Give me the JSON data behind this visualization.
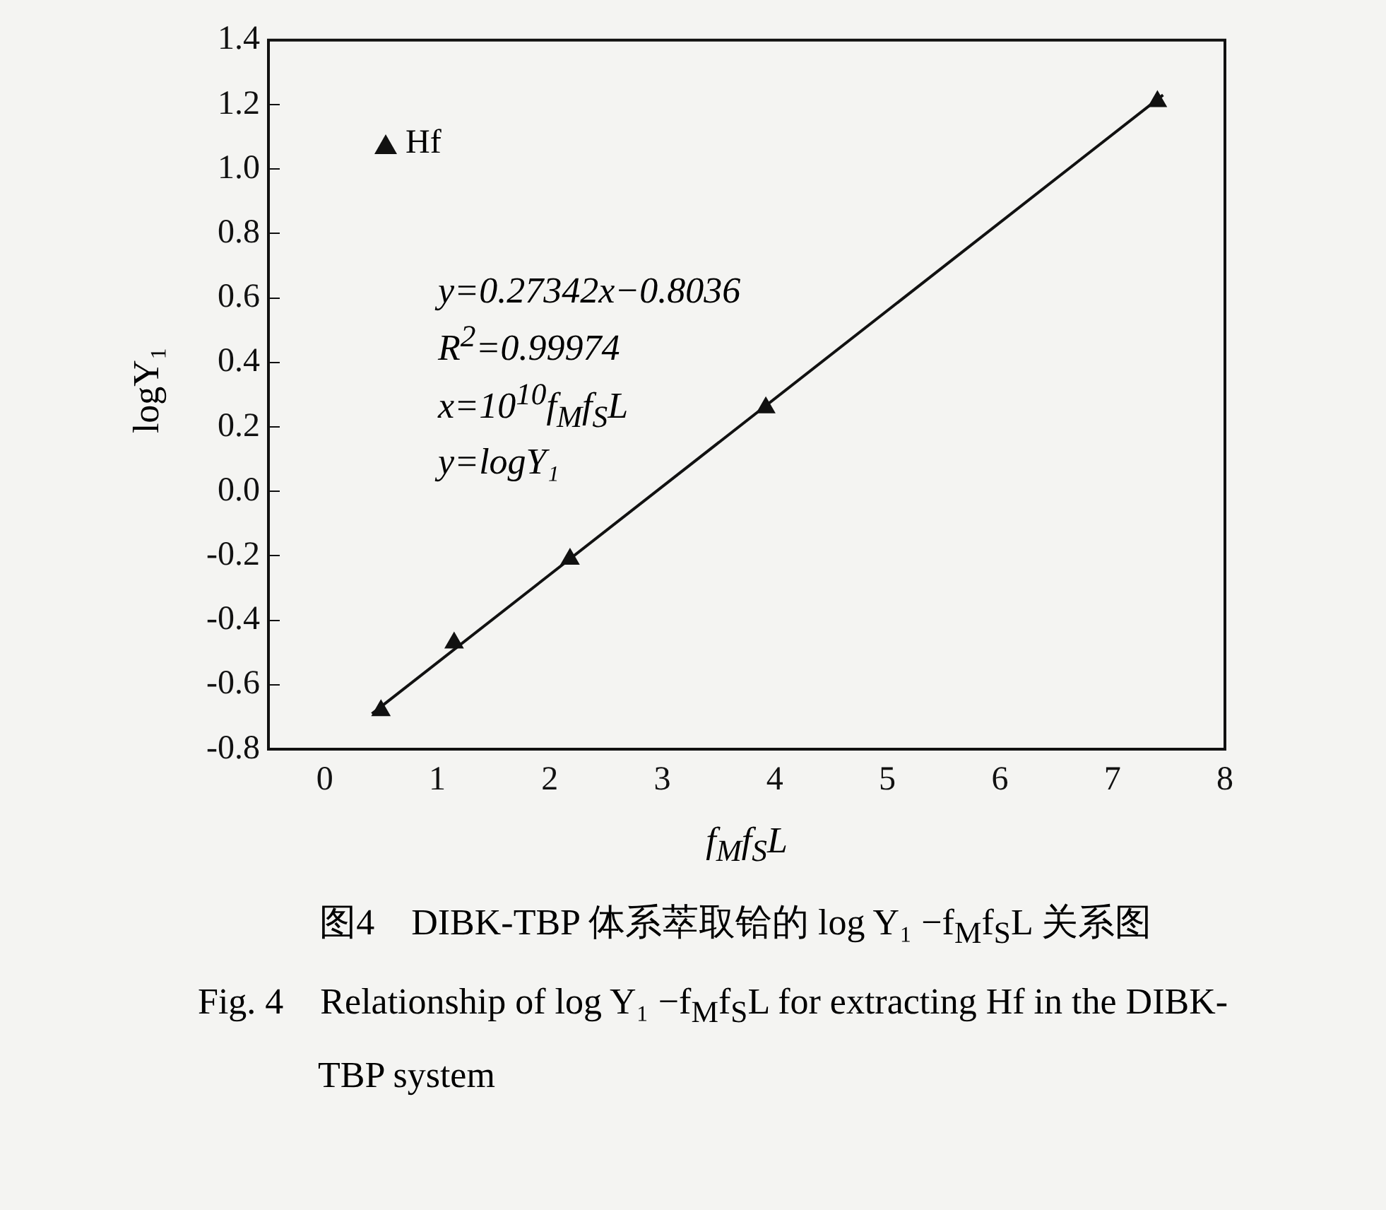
{
  "chart_data": {
    "type": "scatter",
    "title": "图4　DIBK-TBP 体系萃取铪的 log Y₁ −f$_{M}$f$_{S}$L 关系图",
    "subtitle": "Fig. 4　Relationship of log Y₁ −f$_{M}$f$_{S}$L for extracting Hf in the DIBK-TBP system",
    "xlabel": "f$_{M}$f$_{S}$L",
    "ylabel": "logY₁",
    "annotations": [
      "y=0.27342x−0.8036",
      "R$^{2}$=0.99974",
      "x=10$^{10}$f$_{M}$f$_{S}$L",
      "y=logY₁"
    ],
    "series": [
      {
        "name": "Hf",
        "color": "#111111",
        "marker": "triangle",
        "x": [
          0.5,
          1.15,
          2.18,
          3.92,
          7.4
        ],
        "values": [
          -0.68,
          -0.47,
          -0.21,
          0.26,
          1.21
        ]
      },
      {
        "type": "line",
        "color": "#111111",
        "marker": "none",
        "line_style": "solid",
        "x": [
          0.42,
          7.45
        ],
        "values": [
          -0.69,
          1.23
        ]
      }
    ],
    "xlim": [
      -0.5,
      8
    ],
    "xticks": [
      0,
      1,
      2,
      3,
      4,
      5,
      6,
      7,
      8
    ],
    "ylim": [
      -0.8,
      1.4
    ],
    "yticks": [
      -0.8,
      -0.6,
      -0.4,
      -0.2,
      {
        "value": 0,
        "label": "0.0"
      },
      0.2,
      0.4,
      0.6,
      0.8,
      {
        "value": 1,
        "label": "1.0"
      },
      1.2,
      1.4
    ],
    "grid": false,
    "legend": "top left"
  }
}
